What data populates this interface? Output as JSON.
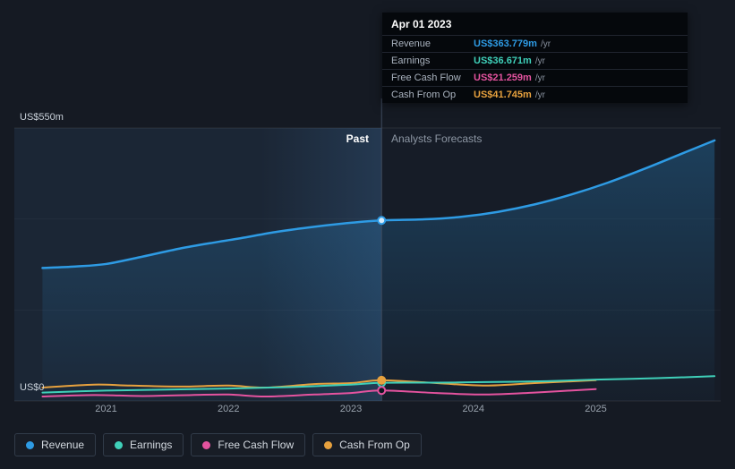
{
  "tooltip": {
    "date": "Apr 01 2023",
    "rows": [
      {
        "label": "Revenue",
        "value": "US$363.779m",
        "suffix": "/yr",
        "color": "#2e9be4"
      },
      {
        "label": "Earnings",
        "value": "US$36.671m",
        "suffix": "/yr",
        "color": "#3fd0b9"
      },
      {
        "label": "Free Cash Flow",
        "value": "US$21.259m",
        "suffix": "/yr",
        "color": "#e4539f"
      },
      {
        "label": "Cash From Op",
        "value": "US$41.745m",
        "suffix": "/yr",
        "color": "#e7a13e"
      }
    ]
  },
  "labels": {
    "past": "Past",
    "forecast": "Analysts Forecasts",
    "y_top": "US$550m",
    "y_bottom": "US$0"
  },
  "legend": {
    "items": [
      {
        "label": "Revenue",
        "color": "#2e9be4"
      },
      {
        "label": "Earnings",
        "color": "#3fd0b9"
      },
      {
        "label": "Free Cash Flow",
        "color": "#e4539f"
      },
      {
        "label": "Cash From Op",
        "color": "#e7a13e"
      }
    ]
  },
  "chart_data": {
    "type": "line",
    "title": "Past and forecast revenue, earnings and cash flow",
    "ylim": [
      0,
      550
    ],
    "y_gridlines": [
      0,
      550
    ],
    "y_gridlines_minor": [
      183,
      367
    ],
    "x_range": [
      2020.25,
      2026.02
    ],
    "x_ticks": [
      "2021",
      "2022",
      "2023",
      "2024",
      "2025"
    ],
    "x_tick_values": [
      2021,
      2022,
      2023,
      2024,
      2025
    ],
    "divider_x": 2023.25,
    "band": [
      2022.26,
      2023.25
    ],
    "series": [
      {
        "name": "Revenue",
        "color": "#2e9be4",
        "width": 2.5,
        "area": true,
        "x": [
          2020.48,
          2020.75,
          2021.0,
          2021.3,
          2021.6,
          2021.9,
          2022.1,
          2022.4,
          2022.7,
          2023.0,
          2023.25,
          2023.6,
          2023.9,
          2024.2,
          2024.5,
          2024.8,
          2025.1,
          2025.4,
          2025.7,
          2025.97
        ],
        "values": [
          268,
          271,
          276,
          291,
          307,
          320,
          328,
          341,
          351,
          359,
          363.779,
          366,
          371,
          381,
          396,
          416,
          440,
          468,
          498,
          525
        ]
      },
      {
        "name": "Cash From Op",
        "color": "#e7a13e",
        "width": 2,
        "area": false,
        "x": [
          2020.48,
          2020.9,
          2021.2,
          2021.6,
          2022.0,
          2022.3,
          2022.7,
          2023.0,
          2023.25,
          2023.7,
          2024.1,
          2024.5,
          2025.0
        ],
        "values": [
          27,
          33,
          31,
          29,
          31,
          27,
          34,
          36,
          41.745,
          36,
          31,
          36,
          42
        ]
      },
      {
        "name": "Free Cash Flow",
        "color": "#e4539f",
        "width": 2,
        "area": false,
        "x": [
          2020.48,
          2020.9,
          2021.3,
          2021.7,
          2022.0,
          2022.3,
          2022.7,
          2023.0,
          2023.25,
          2023.7,
          2024.1,
          2024.5,
          2025.0
        ],
        "values": [
          9,
          12,
          10,
          12,
          13,
          9,
          13,
          16,
          21.259,
          16,
          13,
          17,
          24
        ]
      },
      {
        "name": "Earnings",
        "color": "#3fd0b9",
        "width": 2,
        "area": false,
        "x": [
          2020.48,
          2021.0,
          2021.5,
          2022.0,
          2022.5,
          2023.0,
          2023.25,
          2023.7,
          2024.1,
          2024.6,
          2025.0,
          2025.5,
          2025.97
        ],
        "values": [
          17,
          21,
          23,
          25,
          28,
          33,
          36.671,
          37,
          38,
          40,
          43,
          46,
          50
        ]
      }
    ],
    "markers": [
      {
        "x": 2023.25,
        "value": 363.779,
        "color": "#2e9be4",
        "fill": "#d8ecfb"
      },
      {
        "x": 2023.25,
        "value": 36.671,
        "color": "#3fd0b9",
        "fill": "#0f1620"
      },
      {
        "x": 2023.25,
        "value": 41.745,
        "color": "#e7a13e",
        "fill": "#e7a13e"
      },
      {
        "x": 2023.25,
        "value": 21.259,
        "color": "#e4539f",
        "fill": "#0f1620"
      }
    ]
  }
}
